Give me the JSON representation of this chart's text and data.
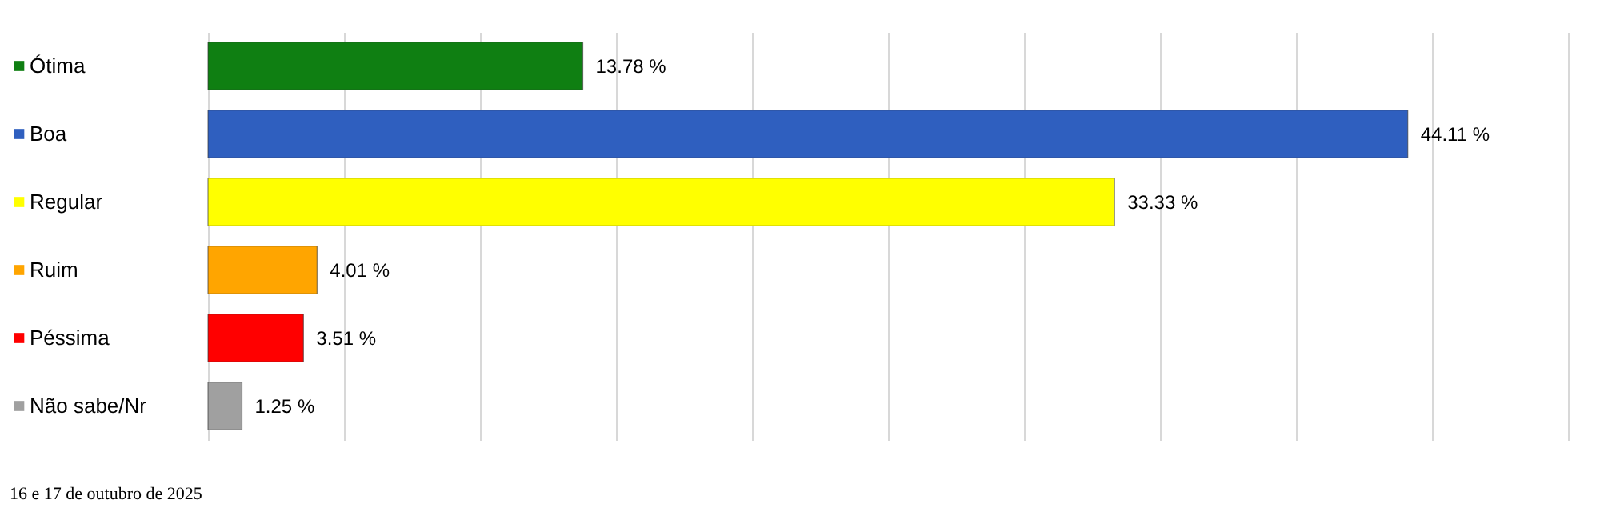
{
  "chart_data": {
    "type": "bar",
    "orientation": "horizontal",
    "categories": [
      "Ótima",
      "Boa",
      "Regular",
      "Ruim",
      "Péssima",
      "Não sabe/Nr"
    ],
    "values": [
      13.78,
      44.11,
      33.33,
      4.01,
      3.51,
      1.25
    ],
    "value_labels": [
      "13.78 %",
      "44.11 %",
      "33.33 %",
      "4.01 %",
      "3.51 %",
      "1.25 %"
    ],
    "colors": [
      "#0f7f12",
      "#2f5fbf",
      "#ffff00",
      "#ffa500",
      "#ff0000",
      "#a0a0a0"
    ],
    "xlim": [
      0,
      50
    ],
    "xticks": [
      {
        "value": 0,
        "label": null
      },
      {
        "value": 5,
        "label": null
      },
      {
        "value": 10,
        "label": null
      },
      {
        "value": 15,
        "label": null
      },
      {
        "value": 20,
        "label": null
      },
      {
        "value": 25,
        "label": null
      },
      {
        "value": 30,
        "label": null
      },
      {
        "value": 35,
        "label": null
      },
      {
        "value": 40,
        "label": null
      },
      {
        "value": 45,
        "label": null
      },
      {
        "value": 50,
        "label": null
      }
    ],
    "grid": "x",
    "tick_labels": "y",
    "annotations": [
      "16 e 17 de outubro de 2025"
    ]
  }
}
